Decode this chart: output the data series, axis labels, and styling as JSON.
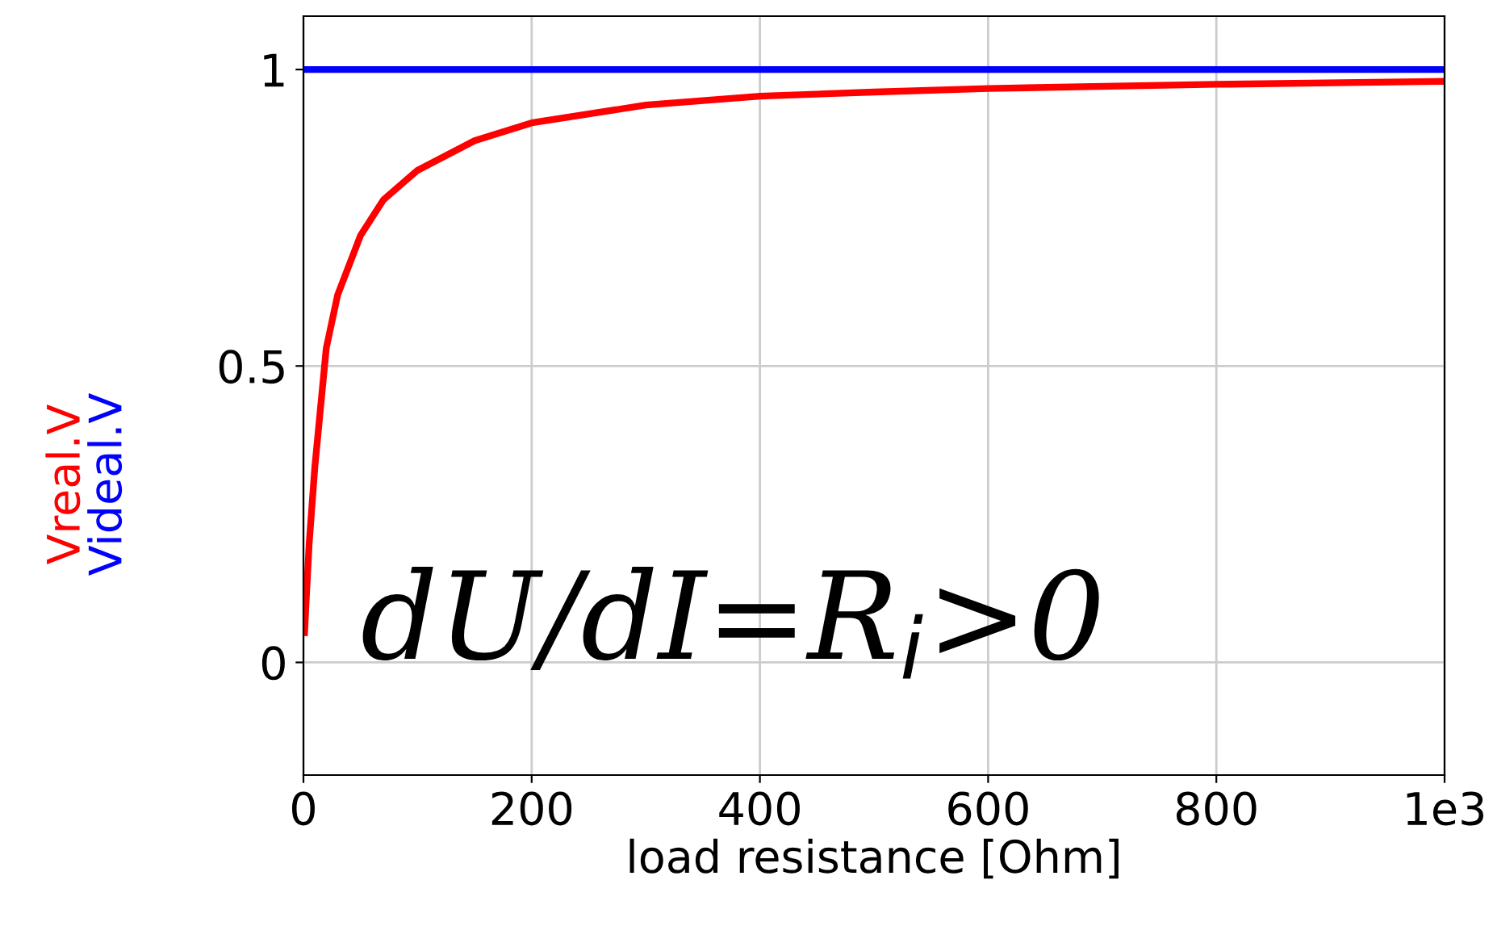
{
  "chart_data": {
    "type": "line",
    "xlabel": "load resistance [Ohm]",
    "xlim": [
      0,
      1000
    ],
    "xticks": [
      0,
      200,
      400,
      600,
      800,
      {
        "value": 1000,
        "label": "1e3"
      }
    ],
    "ylim": [
      -0.19,
      1.09
    ],
    "yticks": [
      0,
      0.5,
      1
    ],
    "grid": true,
    "legend": "left",
    "line_style": "solid",
    "marker": "none",
    "series": [
      {
        "name": "Vreal.V",
        "color": "#ff0000",
        "x": [
          1,
          2,
          5,
          10,
          20,
          30,
          50,
          70,
          100,
          150,
          200,
          300,
          400,
          500,
          600,
          800,
          1000
        ],
        "values": [
          0.05,
          0.09,
          0.2,
          0.33,
          0.53,
          0.62,
          0.72,
          0.78,
          0.83,
          0.88,
          0.91,
          0.94,
          0.955,
          0.962,
          0.968,
          0.975,
          0.98
        ]
      },
      {
        "name": "Videal.V",
        "color": "#0000ff",
        "x": [
          1,
          1000
        ],
        "values": [
          1,
          1
        ]
      }
    ],
    "annotations": [
      "dU/dI=R$_{i}$>0"
    ]
  }
}
